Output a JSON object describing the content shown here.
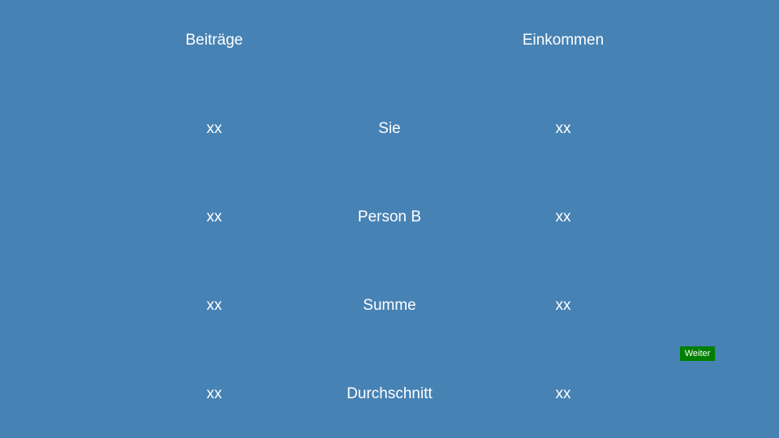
{
  "headers": {
    "contributions": "Beiträge",
    "income": "Einkommen"
  },
  "rows": [
    {
      "label": "Sie",
      "contribution": "xx",
      "income": "xx"
    },
    {
      "label": "Person B",
      "contribution": "xx",
      "income": "xx"
    },
    {
      "label": "Summe",
      "contribution": "xx",
      "income": "xx"
    },
    {
      "label": "Durchschnitt",
      "contribution": "xx",
      "income": "xx"
    }
  ],
  "next_button": {
    "label": "Weiter",
    "color": "#008000"
  },
  "colors": {
    "background": "#4682b4",
    "text": "#ffffff"
  }
}
